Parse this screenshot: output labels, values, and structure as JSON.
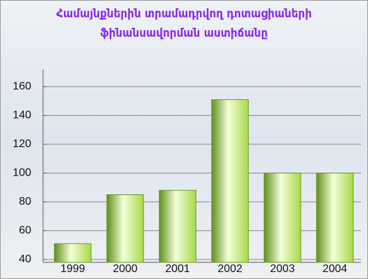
{
  "chart_data": {
    "type": "bar",
    "title_lines": [
      "Համայնքներին տրամադրվող դոտացիաների",
      "ֆինանսավորման աստիճանը"
    ],
    "categories": [
      "1999",
      "2000",
      "2001",
      "2002",
      "2003",
      "2004"
    ],
    "values": [
      51,
      85,
      88,
      151,
      100,
      100
    ],
    "color": "#a8d84a",
    "ylim": [
      38,
      172
    ],
    "yticks": [
      40,
      60,
      80,
      100,
      120,
      140,
      160
    ],
    "grid": true
  }
}
